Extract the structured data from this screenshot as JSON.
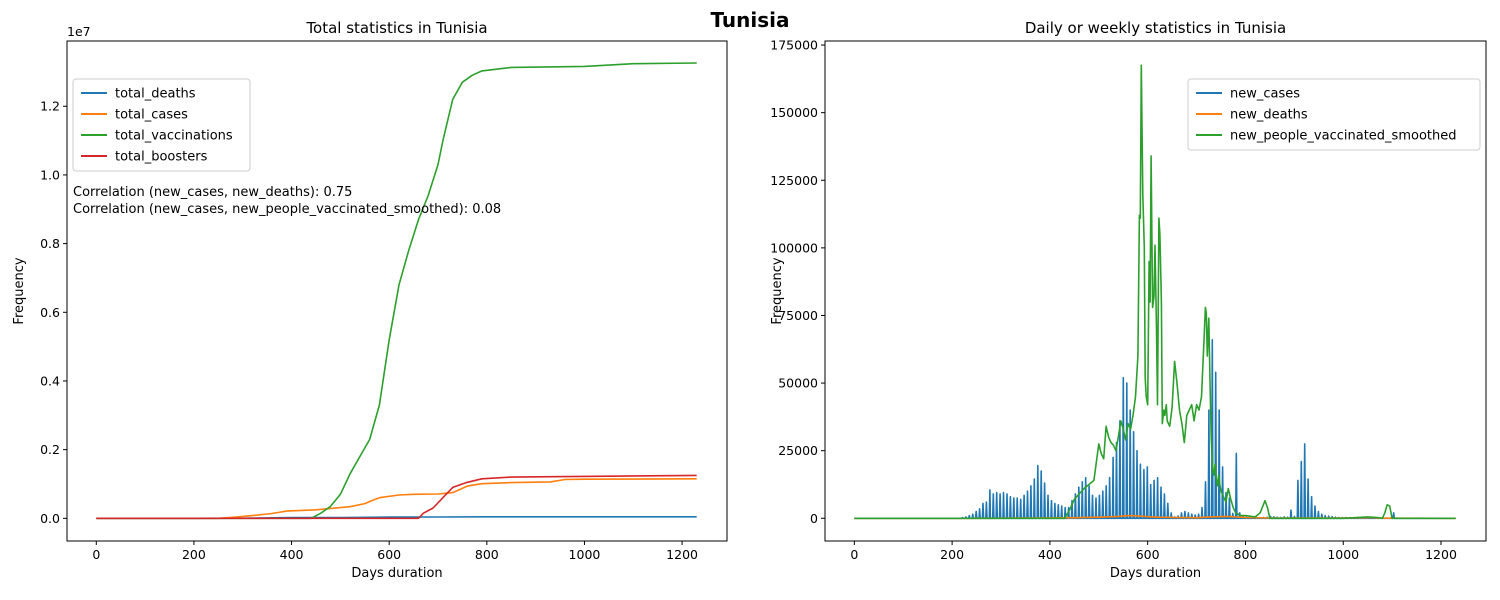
{
  "figure": {
    "title": "Tunisia"
  },
  "chart_data": [
    {
      "type": "line",
      "title": "Total statistics in Tunisia",
      "xlabel": "Days duration",
      "ylabel": "Frequency",
      "y_scale_label": "1e7",
      "xlim": [
        -60,
        1292
      ],
      "ylim": [
        -0.066,
        1.39
      ],
      "xticks": [
        0,
        200,
        400,
        600,
        800,
        1000,
        1200
      ],
      "yticks": [
        0.0,
        0.2,
        0.4,
        0.6,
        0.8,
        1.0,
        1.2
      ],
      "ytick_labels": [
        "0.0",
        "0.2",
        "0.4",
        "0.6",
        "0.8",
        "1.0",
        "1.2"
      ],
      "grid": false,
      "legend_position": "upper-left",
      "annotations": [
        "Correlation (new_cases, new_deaths): 0.75",
        "Correlation (new_cases, new_people_vaccinated_smoothed): 0.08"
      ],
      "series": [
        {
          "name": "total_deaths",
          "color": "#1f77b4",
          "x": [
            0,
            200,
            300,
            400,
            500,
            600,
            700,
            800,
            1230
          ],
          "y": [
            0,
            0,
            0.0005,
            0.002,
            0.0025,
            0.0035,
            0.004,
            0.0045,
            0.0045
          ]
        },
        {
          "name": "total_cases",
          "color": "#ff7f0e",
          "x": [
            0,
            250,
            280,
            320,
            360,
            390,
            450,
            520,
            550,
            565,
            580,
            620,
            650,
            700,
            730,
            760,
            790,
            850,
            930,
            960,
            1000,
            1230
          ],
          "y": [
            0,
            0,
            0.003,
            0.008,
            0.014,
            0.021,
            0.025,
            0.034,
            0.043,
            0.052,
            0.06,
            0.068,
            0.07,
            0.071,
            0.075,
            0.094,
            0.101,
            0.104,
            0.106,
            0.113,
            0.114,
            0.115
          ]
        },
        {
          "name": "total_vaccinations",
          "color": "#2ca02c",
          "x": [
            0,
            440,
            460,
            480,
            500,
            520,
            540,
            560,
            580,
            600,
            620,
            640,
            660,
            680,
            700,
            710,
            730,
            750,
            770,
            790,
            850,
            1000,
            1100,
            1230
          ],
          "y": [
            0,
            0,
            0.015,
            0.035,
            0.07,
            0.13,
            0.18,
            0.23,
            0.33,
            0.52,
            0.68,
            0.78,
            0.87,
            0.94,
            1.03,
            1.1,
            1.22,
            1.27,
            1.29,
            1.303,
            1.313,
            1.316,
            1.324,
            1.326
          ]
        },
        {
          "name": "total_boosters",
          "color": "#d62728",
          "x": [
            0,
            660,
            670,
            690,
            710,
            730,
            760,
            790,
            850,
            1230
          ],
          "y": [
            0,
            0,
            0.015,
            0.03,
            0.06,
            0.09,
            0.105,
            0.115,
            0.12,
            0.125
          ]
        }
      ]
    },
    {
      "type": "line",
      "title": "Daily or weekly statistics in Tunisia",
      "xlabel": "Days duration",
      "ylabel": "Frequency",
      "xlim": [
        -60,
        1292
      ],
      "ylim": [
        -8400,
        176500
      ],
      "xticks": [
        0,
        200,
        400,
        600,
        800,
        1000,
        1200
      ],
      "yticks": [
        0,
        25000,
        50000,
        75000,
        100000,
        125000,
        150000,
        175000
      ],
      "grid": false,
      "legend_position": "upper-right",
      "series": [
        {
          "name": "new_cases",
          "color": "#1f77b4",
          "style": "weekly-spikes",
          "x": [
            220,
            227,
            234,
            241,
            248,
            255,
            262,
            269,
            276,
            283,
            290,
            297,
            304,
            311,
            318,
            325,
            332,
            339,
            346,
            353,
            360,
            367,
            374,
            381,
            388,
            395,
            402,
            409,
            416,
            423,
            430,
            437,
            444,
            451,
            458,
            465,
            472,
            479,
            486,
            493,
            500,
            507,
            514,
            521,
            528,
            535,
            542,
            549,
            556,
            563,
            570,
            577,
            584,
            591,
            598,
            605,
            612,
            619,
            626,
            633,
            640,
            647,
            654,
            661,
            668,
            675,
            682,
            689,
            696,
            703,
            710,
            717,
            724,
            731,
            738,
            745,
            752,
            759,
            766,
            773,
            780,
            787,
            794,
            801,
            808,
            815,
            822,
            829,
            836,
            843,
            850,
            857,
            864,
            871,
            878,
            885,
            892,
            899,
            906,
            913,
            920,
            927,
            934,
            941,
            948,
            955,
            962,
            969,
            976,
            983,
            990,
            997,
            1004,
            1011,
            1018,
            1025,
            1032,
            1039,
            1046,
            1053,
            1060,
            1067,
            1074,
            1081,
            1088,
            1095,
            1102,
            1109
          ],
          "y": [
            200,
            500,
            1000,
            1500,
            2500,
            3500,
            5500,
            6000,
            10500,
            9000,
            9500,
            9000,
            9500,
            9000,
            8000,
            7500,
            7500,
            7000,
            8500,
            10000,
            12000,
            14500,
            19500,
            17500,
            13000,
            8500,
            6500,
            5500,
            5000,
            4500,
            4000,
            4000,
            6500,
            9000,
            11500,
            13500,
            15000,
            12000,
            8500,
            7500,
            8500,
            10000,
            12000,
            15000,
            22500,
            28000,
            36000,
            52000,
            50000,
            40000,
            32000,
            25000,
            20000,
            18000,
            19000,
            12500,
            14000,
            15000,
            11500,
            9000,
            5500,
            2000,
            500,
            800,
            2000,
            2500,
            2000,
            1500,
            1200,
            1500,
            4000,
            13500,
            40000,
            66000,
            54000,
            40000,
            19000,
            9500,
            7500,
            1800,
            24000,
            2000,
            700,
            400,
            300,
            200,
            300,
            200,
            300,
            400,
            700,
            500,
            400,
            300,
            500,
            400,
            3000,
            700,
            14000,
            21000,
            27500,
            14500,
            8000,
            4500,
            2500,
            1500,
            1000,
            800,
            600,
            400,
            300,
            250,
            250,
            200,
            150,
            150,
            150,
            100,
            100,
            100,
            100,
            100,
            100,
            100,
            100,
            100,
            2000,
            100
          ]
        },
        {
          "name": "new_deaths",
          "color": "#ff7f0e",
          "x": [
            0,
            230,
            300,
            360,
            400,
            450,
            500,
            540,
            560,
            580,
            600,
            620,
            660,
            700,
            730,
            760,
            800,
            850,
            1000,
            1050,
            1060,
            1070,
            1230
          ],
          "y": [
            0,
            0,
            30,
            100,
            150,
            200,
            400,
            700,
            1000,
            900,
            600,
            400,
            300,
            200,
            500,
            700,
            300,
            100,
            50,
            200,
            300,
            50,
            0
          ]
        },
        {
          "name": "new_people_vaccinated_smoothed",
          "color": "#2ca02c",
          "x": [
            0,
            430,
            440,
            450,
            460,
            470,
            480,
            490,
            500,
            505,
            510,
            515,
            520,
            525,
            530,
            535,
            540,
            545,
            550,
            555,
            560,
            565,
            570,
            575,
            580,
            583,
            585,
            587,
            590,
            593,
            595,
            597,
            600,
            603,
            605,
            607,
            610,
            613,
            615,
            618,
            620,
            623,
            625,
            628,
            630,
            633,
            635,
            638,
            640,
            645,
            650,
            655,
            660,
            665,
            670,
            675,
            680,
            685,
            690,
            695,
            700,
            705,
            710,
            715,
            718,
            720,
            722,
            725,
            728,
            730,
            733,
            735,
            738,
            740,
            743,
            745,
            748,
            750,
            755,
            760,
            765,
            770,
            775,
            780,
            790,
            800,
            820,
            830,
            840,
            845,
            850,
            880,
            1000,
            1050,
            1070,
            1080,
            1085,
            1090,
            1095,
            1100,
            1230
          ],
          "y": [
            0,
            0,
            3000,
            7000,
            9000,
            11000,
            12500,
            14000,
            27500,
            24000,
            22000,
            34000,
            30000,
            28000,
            27000,
            25000,
            30000,
            36000,
            33000,
            29000,
            35000,
            33000,
            38000,
            45000,
            60000,
            112000,
            111000,
            167500,
            120000,
            100000,
            52000,
            45000,
            42000,
            95000,
            80000,
            134000,
            78000,
            82000,
            101000,
            70000,
            42000,
            111000,
            105000,
            80000,
            35000,
            40000,
            38000,
            42000,
            36000,
            34000,
            41000,
            58000,
            50000,
            40000,
            35000,
            28000,
            38000,
            40000,
            42000,
            36000,
            42000,
            40000,
            45000,
            65000,
            78000,
            76000,
            60000,
            74000,
            45000,
            30000,
            18000,
            16000,
            20000,
            15000,
            12000,
            16000,
            12000,
            10000,
            8000,
            6000,
            11000,
            7000,
            4000,
            2000,
            1000,
            1000,
            500,
            2000,
            6500,
            4000,
            0,
            0,
            0,
            500,
            300,
            0,
            2000,
            5000,
            4500,
            0,
            0
          ]
        }
      ]
    }
  ]
}
